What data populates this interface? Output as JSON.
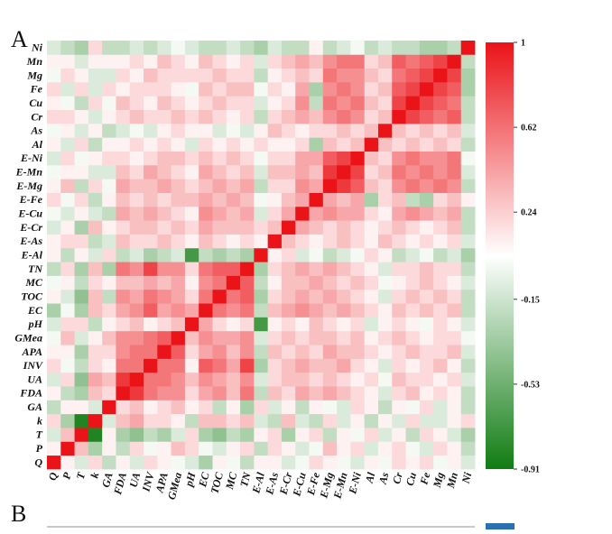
{
  "chart_data": {
    "type": "heatmap",
    "panel_label": "A",
    "next_panel_label": "B",
    "categories": [
      "Q",
      "P",
      "T",
      "k",
      "GA",
      "FDA",
      "UA",
      "INV",
      "APA",
      "GMea",
      "pH",
      "EC",
      "TOC",
      "MC",
      "TN",
      "E-Al",
      "E-As",
      "E-Cr",
      "E-Cu",
      "E-Fe",
      "E-Mg",
      "E-Mn",
      "E-Ni",
      "Al",
      "As",
      "Cr",
      "Cu",
      "Fe",
      "Mg",
      "Mn",
      "Ni"
    ],
    "values": [
      [
        1,
        0.1,
        -0.1,
        0.2,
        -0.2,
        0.1,
        -0.1,
        0.2,
        0.1,
        0,
        -0.1,
        -0.3,
        0.1,
        0,
        -0.2,
        0.1,
        0.1,
        -0.1,
        0,
        0.2,
        0.1,
        0,
        -0.1,
        0.1,
        0,
        0.2,
        0.1,
        0.2,
        0,
        0.1,
        -0.1
      ],
      [
        0.1,
        1,
        0.3,
        -0.3,
        0.1,
        -0.2,
        0.2,
        0,
        0.1,
        0.3,
        0.2,
        0,
        -0.1,
        0.1,
        0.2,
        -0.2,
        0.2,
        0.1,
        -0.1,
        0,
        0.3,
        0.1,
        0.2,
        -0.1,
        0.1,
        0.2,
        0,
        -0.1,
        0.2,
        0.1,
        -0.2
      ],
      [
        -0.1,
        0.3,
        1,
        -0.85,
        0.1,
        -0.3,
        -0.4,
        -0.2,
        -0.3,
        -0.1,
        0.2,
        -0.3,
        -0.4,
        -0.2,
        -0.3,
        0.1,
        0.2,
        -0.3,
        0.1,
        0.2,
        -0.2,
        0.1,
        0,
        0.2,
        -0.1,
        0.1,
        -0.2,
        0.2,
        0.1,
        -0.1,
        -0.3
      ],
      [
        0.2,
        -0.3,
        -0.85,
        1,
        -0.1,
        0.3,
        0.4,
        0.2,
        0.2,
        0.1,
        -0.2,
        0.3,
        0.3,
        0.2,
        0.3,
        -0.1,
        -0.2,
        0.3,
        -0.1,
        -0.2,
        0.2,
        -0.1,
        0.1,
        -0.2,
        0.1,
        -0.1,
        0.2,
        -0.1,
        -0.1,
        0.1,
        0.2
      ],
      [
        -0.2,
        0.1,
        0.1,
        -0.1,
        1,
        0.2,
        0.3,
        0.1,
        0.2,
        0.3,
        0.1,
        0.2,
        -0.2,
        0.1,
        -0.3,
        0.2,
        -0.1,
        0.1,
        -0.2,
        0.1,
        0,
        -0.1,
        0.2,
        0.1,
        -0.2,
        0.1,
        0,
        0.2,
        -0.1,
        0.1,
        -0.2
      ],
      [
        0.1,
        -0.2,
        -0.3,
        0.3,
        0.2,
        1,
        0.85,
        0.6,
        0.5,
        0.5,
        0.2,
        0.4,
        0.5,
        0.3,
        0.6,
        -0.2,
        0.3,
        0.2,
        0.4,
        0.3,
        0.4,
        0.3,
        0.2,
        0.1,
        -0.1,
        0.2,
        0.3,
        0.1,
        0.2,
        0.1,
        -0.2
      ],
      [
        -0.1,
        0.2,
        -0.4,
        0.4,
        0.3,
        0.85,
        1,
        0.6,
        0.6,
        0.5,
        0.3,
        0.5,
        0.4,
        0.3,
        0.5,
        -0.1,
        0.2,
        0.3,
        0.3,
        0.2,
        0.3,
        0.2,
        0.1,
        0.2,
        0,
        0.3,
        0.2,
        0.2,
        0.1,
        0.2,
        -0.1
      ],
      [
        0.2,
        0,
        -0.2,
        0.2,
        0.1,
        0.6,
        0.6,
        1,
        0.6,
        0.6,
        0.1,
        0.7,
        0.6,
        0.4,
        0.8,
        -0.3,
        0.2,
        0.3,
        0.4,
        0.3,
        0.3,
        0.4,
        0.2,
        0.1,
        -0.1,
        0.2,
        0.1,
        0.2,
        0.3,
        0.1,
        -0.2
      ],
      [
        0.1,
        0.1,
        -0.3,
        0.2,
        0.2,
        0.5,
        0.6,
        0.6,
        1,
        0.7,
        0.2,
        0.4,
        0.5,
        0.3,
        0.5,
        -0.2,
        0.3,
        0.2,
        0.3,
        0.2,
        0.4,
        0.3,
        0.3,
        0.2,
        0.1,
        0.2,
        0.3,
        0.2,
        0.2,
        0.3,
        -0.1
      ],
      [
        0,
        0.3,
        -0.1,
        0.1,
        0.3,
        0.5,
        0.5,
        0.6,
        0.7,
        1,
        0.3,
        0.5,
        0.4,
        0.4,
        0.5,
        -0.1,
        0.2,
        0.3,
        0.2,
        0.3,
        0.3,
        0.2,
        0.3,
        0.1,
        0.2,
        0.3,
        0.2,
        0.1,
        0.2,
        0.2,
        0
      ],
      [
        -0.1,
        0.2,
        0.2,
        -0.2,
        0.1,
        0.2,
        0.3,
        0.1,
        0.2,
        0.3,
        1,
        0.4,
        0.2,
        0.1,
        0.2,
        -0.7,
        0.1,
        0.2,
        0.1,
        0.3,
        0.2,
        0.1,
        0.2,
        -0.1,
        0.1,
        0.2,
        0.1,
        0,
        0.2,
        0.1,
        -0.1
      ],
      [
        -0.3,
        0,
        -0.3,
        0.3,
        0.2,
        0.4,
        0.5,
        0.7,
        0.4,
        0.5,
        0.4,
        1,
        0.6,
        0.5,
        0.6,
        -0.2,
        0.3,
        0.4,
        0.5,
        0.4,
        0.3,
        0.4,
        0.3,
        0.2,
        0.1,
        0.3,
        0.2,
        0.3,
        0.2,
        0.3,
        -0.2
      ],
      [
        0.1,
        -0.1,
        -0.4,
        0.3,
        -0.2,
        0.5,
        0.4,
        0.6,
        0.5,
        0.4,
        0.2,
        0.6,
        1,
        0.6,
        0.7,
        -0.3,
        0.2,
        0.3,
        0.4,
        0.3,
        0.4,
        0.3,
        0.2,
        0.1,
        -0.1,
        0.2,
        0.3,
        0.2,
        0.3,
        0.2,
        -0.2
      ],
      [
        0,
        0.1,
        -0.2,
        0.2,
        0.1,
        0.3,
        0.3,
        0.4,
        0.3,
        0.4,
        0.1,
        0.5,
        0.6,
        1,
        0.7,
        -0.2,
        0.1,
        0.3,
        0.3,
        0.4,
        0.3,
        0.2,
        0.3,
        0.2,
        0,
        0.1,
        0.2,
        0.3,
        0.2,
        0.1,
        -0.1
      ],
      [
        -0.2,
        0.2,
        -0.3,
        0.3,
        -0.3,
        0.6,
        0.5,
        0.8,
        0.5,
        0.5,
        0.2,
        0.6,
        0.7,
        0.7,
        1,
        -0.3,
        0.2,
        0.3,
        0.4,
        0.3,
        0.4,
        0.3,
        0.2,
        0.1,
        -0.1,
        0.2,
        0.2,
        0.3,
        0.2,
        0.2,
        -0.2
      ],
      [
        0.1,
        -0.2,
        0.1,
        -0.1,
        0.2,
        -0.2,
        -0.1,
        -0.3,
        -0.2,
        -0.1,
        -0.7,
        -0.2,
        -0.3,
        -0.2,
        -0.3,
        1,
        0.1,
        0.2,
        -0.1,
        0,
        -0.2,
        -0.1,
        0,
        0.2,
        0.1,
        -0.2,
        -0.1,
        0,
        -0.2,
        -0.1,
        -0.3
      ],
      [
        0.1,
        0.2,
        0.2,
        -0.2,
        -0.1,
        0.3,
        0.2,
        0.2,
        0.3,
        0.2,
        0.1,
        0.3,
        0.2,
        0.1,
        0.2,
        0.1,
        1,
        0.3,
        0.2,
        0.1,
        0.2,
        0.3,
        0.2,
        0.1,
        0.3,
        0.2,
        0.1,
        0.2,
        0.1,
        0.2,
        -0.1
      ],
      [
        -0.1,
        0.1,
        -0.3,
        0.3,
        0.1,
        0.2,
        0.3,
        0.3,
        0.2,
        0.3,
        0.2,
        0.4,
        0.3,
        0.3,
        0.3,
        0.2,
        0.3,
        1,
        0.4,
        0.3,
        0.2,
        0.3,
        0.2,
        0.1,
        0.2,
        0.3,
        0.2,
        0.1,
        0.2,
        0.3,
        -0.2
      ],
      [
        0,
        -0.1,
        0.1,
        -0.1,
        -0.2,
        0.4,
        0.3,
        0.4,
        0.3,
        0.2,
        0.1,
        0.5,
        0.4,
        0.3,
        0.4,
        -0.1,
        0.2,
        0.4,
        1,
        0.4,
        0.5,
        0.4,
        0.4,
        0.2,
        0.1,
        0.4,
        0.5,
        0.4,
        0.3,
        0.4,
        -0.2
      ],
      [
        0.2,
        0,
        0.2,
        -0.2,
        0.1,
        0.3,
        0.2,
        0.3,
        0.2,
        0.3,
        0.3,
        0.4,
        0.3,
        0.4,
        0.3,
        0,
        0.1,
        0.3,
        0.4,
        1,
        0.4,
        0.3,
        0.4,
        -0.3,
        0.2,
        0.3,
        -0.2,
        -0.3,
        0.2,
        0.3,
        0.1
      ],
      [
        0.1,
        0.3,
        -0.2,
        0.2,
        0,
        0.4,
        0.3,
        0.3,
        0.4,
        0.3,
        0.2,
        0.3,
        0.4,
        0.3,
        0.4,
        -0.2,
        0.2,
        0.2,
        0.5,
        0.4,
        1,
        0.85,
        0.7,
        0.3,
        0.2,
        0.5,
        0.6,
        0.5,
        0.6,
        0.5,
        -0.2
      ],
      [
        0,
        0.1,
        0.1,
        -0.1,
        -0.1,
        0.3,
        0.2,
        0.4,
        0.3,
        0.2,
        0.1,
        0.4,
        0.3,
        0.2,
        0.3,
        -0.1,
        0.3,
        0.3,
        0.4,
        0.3,
        0.85,
        1,
        0.8,
        0.2,
        0.3,
        0.6,
        0.5,
        0.6,
        0.5,
        0.6,
        -0.1
      ],
      [
        -0.1,
        0.2,
        0,
        0.1,
        0.2,
        0.2,
        0.1,
        0.2,
        0.3,
        0.3,
        0.2,
        0.3,
        0.2,
        0.3,
        0.2,
        0,
        0.2,
        0.2,
        0.4,
        0.4,
        0.7,
        0.8,
        1,
        0.3,
        0.2,
        0.5,
        0.6,
        0.5,
        0.5,
        0.6,
        0
      ],
      [
        0.1,
        -0.1,
        0.2,
        -0.2,
        0.1,
        0.1,
        0.2,
        0.1,
        0.2,
        0.1,
        -0.1,
        0.2,
        0.1,
        0.2,
        0.1,
        0.2,
        0.1,
        0.1,
        0.2,
        -0.3,
        0.3,
        0.2,
        0.3,
        1,
        0.3,
        0.2,
        0.3,
        0.2,
        0.3,
        0.2,
        -0.2
      ],
      [
        0,
        0.1,
        -0.1,
        0.1,
        -0.2,
        -0.1,
        0,
        -0.1,
        0.1,
        0.2,
        0.1,
        0.1,
        -0.1,
        0,
        -0.1,
        0.1,
        0.3,
        0.2,
        0.1,
        0.2,
        0.2,
        0.3,
        0.2,
        0.3,
        1,
        0.3,
        0.2,
        0.3,
        0.2,
        0.3,
        -0.1
      ],
      [
        0.2,
        0.2,
        0.1,
        -0.1,
        0.1,
        0.2,
        0.3,
        0.2,
        0.2,
        0.3,
        0.2,
        0.3,
        0.2,
        0.1,
        0.2,
        -0.2,
        0.2,
        0.3,
        0.4,
        0.3,
        0.5,
        0.6,
        0.5,
        0.2,
        0.3,
        1,
        0.8,
        0.7,
        0.6,
        0.7,
        -0.2
      ],
      [
        0.1,
        0,
        -0.2,
        0.2,
        0,
        0.3,
        0.2,
        0.1,
        0.3,
        0.2,
        0.1,
        0.2,
        0.3,
        0.2,
        0.2,
        -0.1,
        0.1,
        0.2,
        0.5,
        -0.2,
        0.6,
        0.5,
        0.6,
        0.3,
        0.2,
        0.8,
        1,
        0.8,
        0.7,
        0.6,
        -0.2
      ],
      [
        0.2,
        -0.1,
        0.2,
        -0.1,
        0.2,
        0.1,
        0.2,
        0.2,
        0.2,
        0.1,
        0,
        0.3,
        0.2,
        0.3,
        0.3,
        0,
        0.2,
        0.1,
        0.4,
        -0.3,
        0.5,
        0.6,
        0.5,
        0.2,
        0.3,
        0.7,
        0.8,
        1,
        0.8,
        0.7,
        -0.3
      ],
      [
        0,
        0.2,
        0.1,
        -0.1,
        -0.1,
        0.2,
        0.1,
        0.3,
        0.2,
        0.2,
        0.2,
        0.2,
        0.3,
        0.2,
        0.2,
        -0.2,
        0.1,
        0.2,
        0.3,
        0.2,
        0.6,
        0.5,
        0.5,
        0.3,
        0.2,
        0.6,
        0.7,
        0.8,
        1,
        0.8,
        -0.3
      ],
      [
        0.1,
        0.1,
        -0.1,
        0.1,
        0.1,
        0.1,
        0.2,
        0.1,
        0.3,
        0.2,
        0.1,
        0.3,
        0.2,
        0.1,
        0.2,
        -0.1,
        0.2,
        0.3,
        0.4,
        0.3,
        0.5,
        0.6,
        0.6,
        0.2,
        0.3,
        0.7,
        0.6,
        0.7,
        0.8,
        1,
        -0.2
      ],
      [
        -0.1,
        -0.2,
        -0.3,
        0.2,
        -0.2,
        -0.2,
        -0.1,
        -0.2,
        -0.1,
        0,
        -0.1,
        -0.2,
        -0.2,
        -0.1,
        -0.2,
        -0.3,
        -0.1,
        -0.2,
        -0.2,
        0.1,
        -0.2,
        -0.1,
        0,
        -0.2,
        -0.1,
        -0.2,
        -0.2,
        -0.3,
        -0.3,
        -0.2,
        1
      ]
    ],
    "zlim": [
      -0.91,
      1
    ],
    "zticks": [
      1,
      0.62,
      0.24,
      -0.15,
      -0.53,
      -0.91
    ],
    "colormap": [
      "#107c12",
      "#ffffff",
      "#ea1318"
    ]
  }
}
